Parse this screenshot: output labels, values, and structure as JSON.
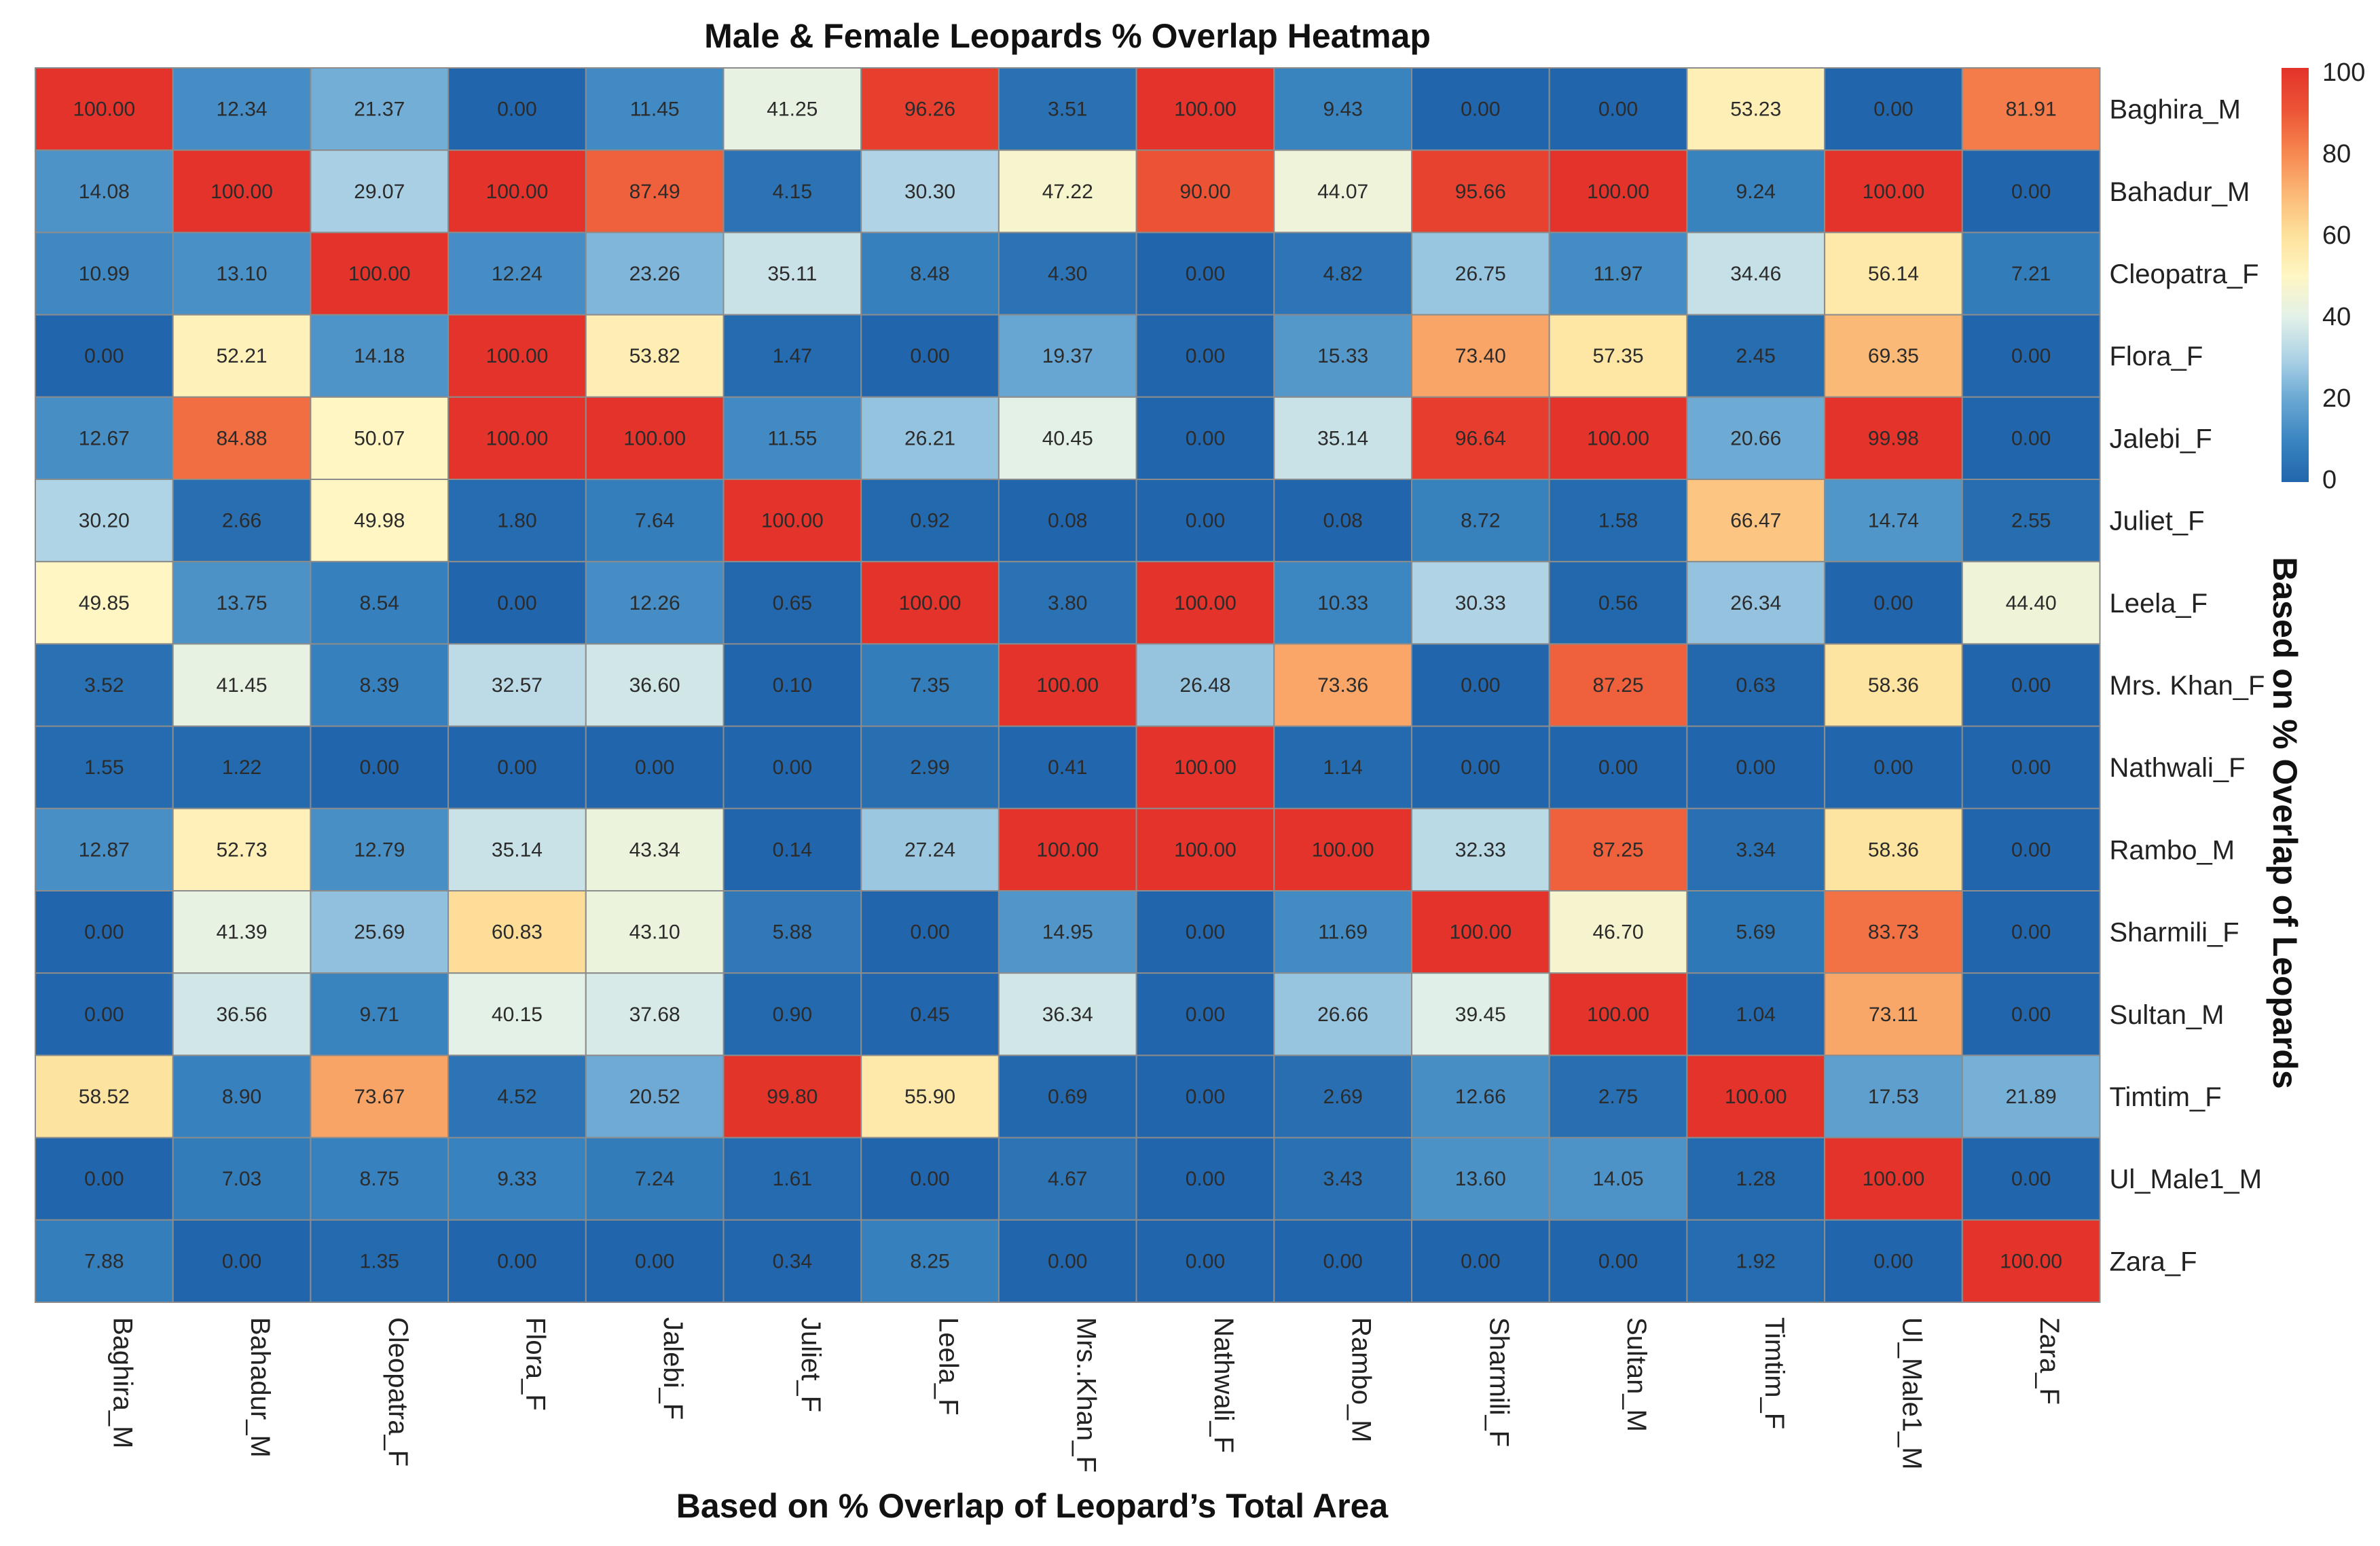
{
  "chart_data": {
    "type": "heatmap",
    "title": "Male & Female Leopards % Overlap Heatmap",
    "xlabel": "Based on % Overlap of Leopard’s Total Area",
    "ylabel": "Based on % Overlap of Leopards",
    "rows": [
      "Baghira_M",
      "Bahadur_M",
      "Cleopatra_F",
      "Flora_F",
      "Jalebi_F",
      "Juliet_F",
      "Leela_F",
      "Mrs. Khan_F",
      "Nathwali_F",
      "Rambo_M",
      "Sharmili_F",
      "Sultan_M",
      "Timtim_F",
      "Ul_Male1_M",
      "Zara_F"
    ],
    "columns": [
      "Baghira_M",
      "Bahadur_M",
      "Cleopatra_F",
      "Flora_F",
      "Jalebi_F",
      "Juliet_F",
      "Leela_F",
      "Mrs..Khan_F",
      "Nathwali_F",
      "Rambo_M",
      "Sharmili_F",
      "Sultan_M",
      "Timtim_F",
      "Ul_Male1_M",
      "Zara_F"
    ],
    "values": [
      [
        "100.00",
        "12.34",
        "21.37",
        "0.00",
        "11.45",
        "41.25",
        "96.26",
        "3.51",
        "100.00",
        "9.43",
        "0.00",
        "0.00",
        "53.23",
        "0.00",
        "81.91"
      ],
      [
        "14.08",
        "100.00",
        "29.07",
        "100.00",
        "87.49",
        "4.15",
        "30.30",
        "47.22",
        "90.00",
        "44.07",
        "95.66",
        "100.00",
        "9.24",
        "100.00",
        "0.00"
      ],
      [
        "10.99",
        "13.10",
        "100.00",
        "12.24",
        "23.26",
        "35.11",
        "8.48",
        "4.30",
        "0.00",
        "4.82",
        "26.75",
        "11.97",
        "34.46",
        "56.14",
        "7.21"
      ],
      [
        "0.00",
        "52.21",
        "14.18",
        "100.00",
        "53.82",
        "1.47",
        "0.00",
        "19.37",
        "0.00",
        "15.33",
        "73.40",
        "57.35",
        "2.45",
        "69.35",
        "0.00"
      ],
      [
        "12.67",
        "84.88",
        "50.07",
        "100.00",
        "100.00",
        "11.55",
        "26.21",
        "40.45",
        "0.00",
        "35.14",
        "96.64",
        "100.00",
        "20.66",
        "99.98",
        "0.00"
      ],
      [
        "30.20",
        "2.66",
        "49.98",
        "1.80",
        "7.64",
        "100.00",
        "0.92",
        "0.08",
        "0.00",
        "0.08",
        "8.72",
        "1.58",
        "66.47",
        "14.74",
        "2.55"
      ],
      [
        "49.85",
        "13.75",
        "8.54",
        "0.00",
        "12.26",
        "0.65",
        "100.00",
        "3.80",
        "100.00",
        "10.33",
        "30.33",
        "0.56",
        "26.34",
        "0.00",
        "44.40"
      ],
      [
        "3.52",
        "41.45",
        "8.39",
        "32.57",
        "36.60",
        "0.10",
        "7.35",
        "100.00",
        "26.48",
        "73.36",
        "0.00",
        "87.25",
        "0.63",
        "58.36",
        "0.00"
      ],
      [
        "1.55",
        "1.22",
        "0.00",
        "0.00",
        "0.00",
        "0.00",
        "2.99",
        "0.41",
        "100.00",
        "1.14",
        "0.00",
        "0.00",
        "0.00",
        "0.00",
        "0.00"
      ],
      [
        "12.87",
        "52.73",
        "12.79",
        "35.14",
        "43.34",
        "0.14",
        "27.24",
        "100.00",
        "100.00",
        "100.00",
        "32.33",
        "87.25",
        "3.34",
        "58.36",
        "0.00"
      ],
      [
        "0.00",
        "41.39",
        "25.69",
        "60.83",
        "43.10",
        "5.88",
        "0.00",
        "14.95",
        "0.00",
        "11.69",
        "100.00",
        "46.70",
        "5.69",
        "83.73",
        "0.00"
      ],
      [
        "0.00",
        "36.56",
        "9.71",
        "40.15",
        "37.68",
        "0.90",
        "0.45",
        "36.34",
        "0.00",
        "26.66",
        "39.45",
        "100.00",
        "1.04",
        "73.11",
        "0.00"
      ],
      [
        "58.52",
        "8.90",
        "73.67",
        "4.52",
        "20.52",
        "99.80",
        "55.90",
        "0.69",
        "0.00",
        "2.69",
        "12.66",
        "2.75",
        "100.00",
        "17.53",
        "21.89"
      ],
      [
        "0.00",
        "7.03",
        "8.75",
        "9.33",
        "7.24",
        "1.61",
        "0.00",
        "4.67",
        "0.00",
        "3.43",
        "13.60",
        "14.05",
        "1.28",
        "100.00",
        "0.00"
      ],
      [
        "7.88",
        "0.00",
        "1.35",
        "0.00",
        "0.00",
        "0.34",
        "8.25",
        "0.00",
        "0.00",
        "0.00",
        "0.00",
        "0.00",
        "1.92",
        "0.00",
        "100.00"
      ]
    ],
    "colorscale": {
      "min": 0,
      "max": 100,
      "stops": [
        {
          "value": 0,
          "color": "#2166ac"
        },
        {
          "value": 10,
          "color": "#3a85c0"
        },
        {
          "value": 20,
          "color": "#6aa8d3"
        },
        {
          "value": 30,
          "color": "#aed3e6"
        },
        {
          "value": 40,
          "color": "#e3f1e8"
        },
        {
          "value": 50,
          "color": "#fff6c3"
        },
        {
          "value": 60,
          "color": "#fde09a"
        },
        {
          "value": 70,
          "color": "#fbb675"
        },
        {
          "value": 80,
          "color": "#f6854f"
        },
        {
          "value": 90,
          "color": "#ec5335"
        },
        {
          "value": 100,
          "color": "#e3332a"
        }
      ],
      "ticks": [
        "100",
        "80",
        "60",
        "40",
        "20",
        "0"
      ]
    },
    "gridline_color": "#8c8c8c",
    "legend_placement": "right"
  }
}
